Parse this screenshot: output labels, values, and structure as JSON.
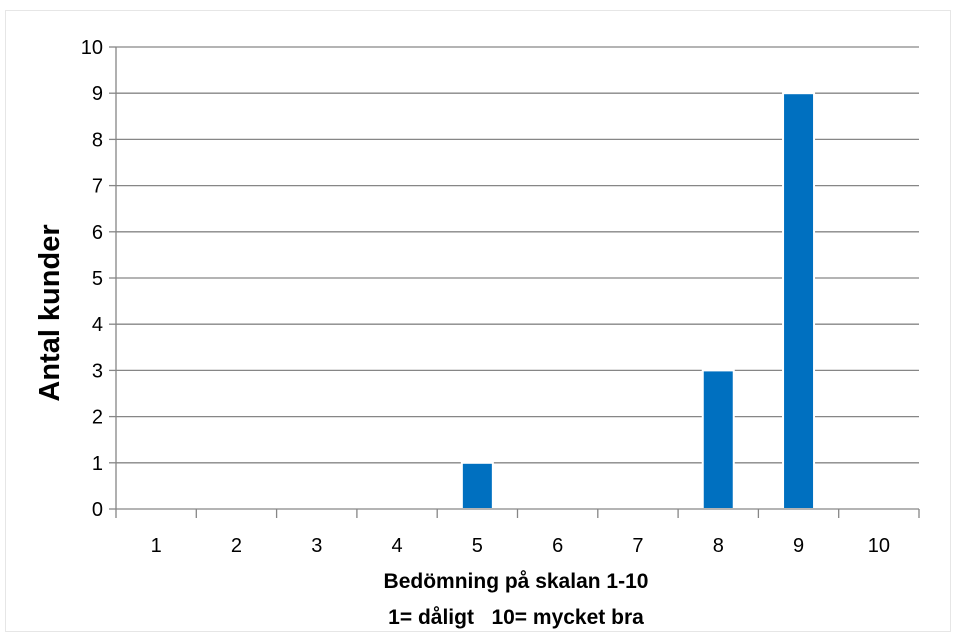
{
  "chart_data": {
    "type": "bar",
    "categories": [
      "1",
      "2",
      "3",
      "4",
      "5",
      "6",
      "7",
      "8",
      "9",
      "10"
    ],
    "values": [
      0,
      0,
      0,
      0,
      1,
      0,
      0,
      3,
      9,
      0
    ],
    "ylabel": "Antal kunder",
    "xlabel_lines": [
      "Bedömning på skalan 1-10",
      "1= dåligt   10= mycket bra"
    ],
    "ylim": [
      0,
      10
    ],
    "yticks": [
      "0",
      "1",
      "2",
      "3",
      "4",
      "5",
      "6",
      "7",
      "8",
      "9",
      "10"
    ],
    "grid": true,
    "legend": "none",
    "bar_color": "#0070c0",
    "grid_color": "#868686"
  }
}
